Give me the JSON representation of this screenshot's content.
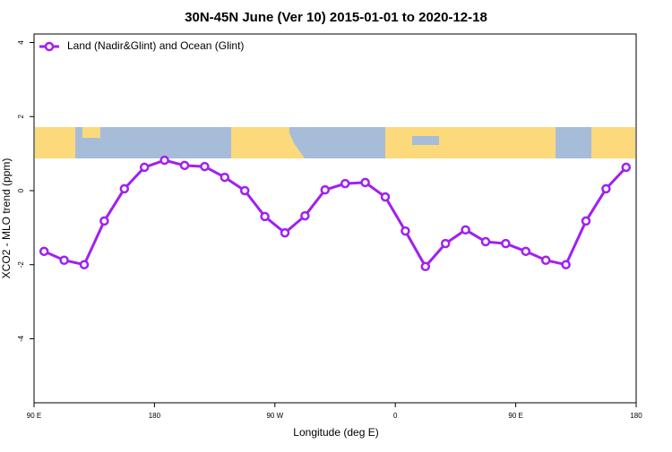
{
  "chart_data": {
    "type": "line",
    "title": "30N-45N June (Ver 10)   2015-01-01 to 2020-12-18",
    "x_label": "Longitude (deg E)",
    "y_label": "XCO2 - MLO trend (ppm)",
    "x": [
      97.5,
      112.5,
      127.5,
      142.5,
      157.5,
      172.5,
      187.5,
      202.5,
      217.5,
      232.5,
      247.5,
      262.5,
      277.5,
      292.5,
      307.5,
      322.5,
      337.5,
      352.5,
      367.5,
      382.5,
      397.5,
      412.5,
      427.5,
      442.5,
      457.5,
      472.5,
      487.5,
      502.5,
      517.5,
      532.5
    ],
    "series": [
      {
        "name": "Land (Nadir&Glint) and Ocean (Glint)",
        "color": "#a020f0",
        "values": [
          -1.64,
          -1.88,
          -2.0,
          -0.82,
          0.05,
          0.63,
          0.82,
          0.68,
          0.65,
          0.36,
          0.0,
          -0.7,
          -1.14,
          -0.68,
          0.02,
          0.19,
          0.22,
          -0.17,
          -1.09,
          -2.05,
          -1.43,
          -1.06,
          -1.38,
          -1.43,
          -1.64,
          -1.88,
          -2.0,
          -0.82,
          0.05,
          0.63
        ]
      }
    ],
    "xlim": [
      90,
      540
    ],
    "xticks": [
      {
        "value": 90,
        "label": "90 E"
      },
      180,
      {
        "value": 270,
        "label": "90 W"
      },
      {
        "value": 360,
        "label": "0"
      },
      {
        "value": 450,
        "label": "90 E"
      },
      {
        "value": 540,
        "label": "180"
      }
    ],
    "ylim": [
      -5.73,
      4.23
    ],
    "yticks": [
      -4,
      -2,
      0,
      2,
      4
    ],
    "legend": "top-left"
  }
}
